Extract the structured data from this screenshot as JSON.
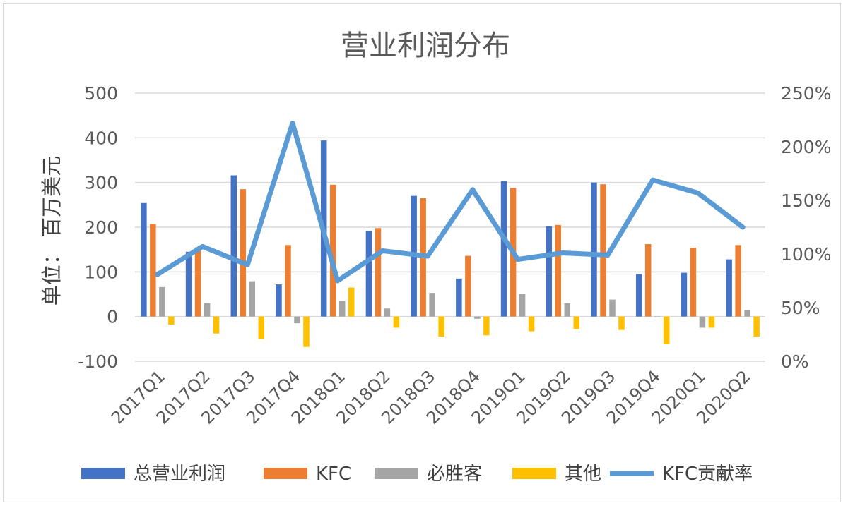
{
  "chart_data": {
    "type": "bar",
    "title": "营业利润分布",
    "ylabel": "单位： 百万美元",
    "xlabel": "",
    "categories": [
      "2017Q1",
      "2017Q2",
      "2017Q3",
      "2017Q4",
      "2018Q1",
      "2018Q2",
      "2018Q3",
      "2018Q4",
      "2019Q1",
      "2019Q2",
      "2019Q3",
      "2019Q4",
      "2020Q1",
      "2020Q2"
    ],
    "ylim": [
      -100,
      500
    ],
    "yticks": [
      "500",
      "400",
      "300",
      "200",
      "100",
      "0",
      "-100"
    ],
    "y2lim": [
      0,
      250
    ],
    "y2ticks": [
      "250%",
      "200%",
      "150%",
      "100%",
      "50%",
      "0%"
    ],
    "grid": true,
    "legend_position": "bottom",
    "colors": {
      "total": "#4472C4",
      "kfc": "#ED7D31",
      "pizza_hut": "#A5A5A5",
      "other": "#FFC000",
      "ratio": "#5B9BD5"
    },
    "series": [
      {
        "name": "总营业利润",
        "key": "total",
        "values": [
          254,
          145,
          316,
          72,
          394,
          192,
          270,
          85,
          303,
          202,
          300,
          95,
          98,
          128
        ]
      },
      {
        "name": "KFC",
        "key": "kfc",
        "values": [
          207,
          155,
          285,
          160,
          295,
          198,
          265,
          136,
          288,
          205,
          296,
          162,
          154,
          160
        ]
      },
      {
        "name": "必胜客",
        "key": "pizza_hut",
        "values": [
          66,
          30,
          79,
          -15,
          35,
          18,
          53,
          -5,
          51,
          30,
          38,
          0,
          -25,
          14
        ]
      },
      {
        "name": "其他",
        "key": "other",
        "values": [
          -18,
          -38,
          -50,
          -68,
          65,
          -25,
          -45,
          -42,
          -33,
          -28,
          -30,
          -62,
          -25,
          -45
        ]
      }
    ],
    "line_series": {
      "name": "KFC贡献率",
      "key": "ratio",
      "axis": "right",
      "values": [
        81,
        107,
        90,
        222,
        75,
        103,
        98,
        160,
        95,
        101,
        99,
        169,
        157,
        125
      ]
    }
  }
}
